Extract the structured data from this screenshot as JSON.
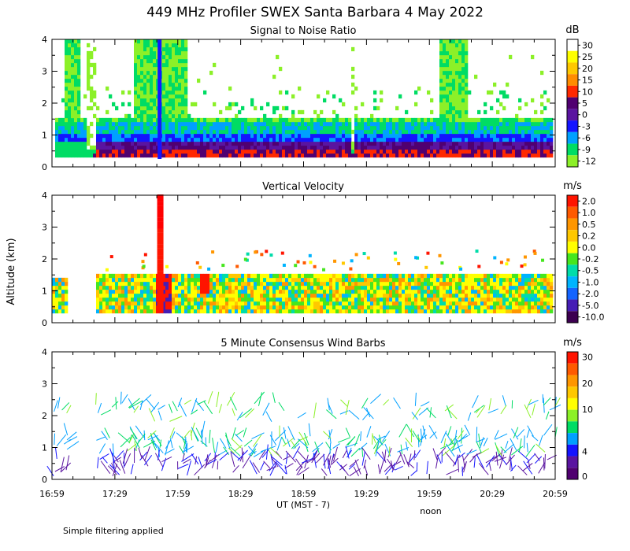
{
  "page": {
    "title": "449 MHz Profiler SWEX Santa Barbara  4 May 2022",
    "footer_note": "Simple filtering applied",
    "y_axis_label": "Altitude (km)",
    "x_axis_label": "UT  (MST - 7)",
    "noon_label": "noon"
  },
  "chart_data": [
    {
      "type": "heatmap",
      "title": "Signal to Noise Ratio",
      "unit": "dB",
      "ylim": [
        0,
        4
      ],
      "y_ticks": [
        "0",
        "1",
        "2",
        "3",
        "4"
      ],
      "x_ticks": [
        "16:59",
        "17:29",
        "17:59",
        "18:29",
        "18:59",
        "19:29",
        "19:59",
        "20:29",
        "20:59"
      ],
      "colorbar_labels": [
        "30",
        "25",
        "20",
        "15",
        "10",
        "5",
        "0",
        "-3",
        "-6",
        "-9",
        "-12"
      ],
      "colorbar_colors": [
        "#ffffff",
        "#ffff00",
        "#ffc800",
        "#ff8c00",
        "#ff2800",
        "#500070",
        "#5a14a0",
        "#1414ff",
        "#00a0ff",
        "#00dc64",
        "#8cf028"
      ]
    },
    {
      "type": "heatmap",
      "title": "Vertical Velocity",
      "unit": "m/s",
      "ylim": [
        0,
        4
      ],
      "y_ticks": [
        "0",
        "1",
        "2",
        "3",
        "4"
      ],
      "x_ticks": [
        "16:59",
        "17:29",
        "17:59",
        "18:29",
        "18:59",
        "19:29",
        "19:59",
        "20:29",
        "20:59"
      ],
      "colorbar_labels": [
        "2.0",
        "1.0",
        "0.5",
        "0.2",
        "0.0",
        "-0.2",
        "-0.5",
        "-1.0",
        "-2.0",
        "-5.0",
        "-10.0"
      ],
      "colorbar_colors": [
        "#ff1400",
        "#ff5a00",
        "#ff9600",
        "#ffc800",
        "#ffff00",
        "#46e61e",
        "#00dcaa",
        "#00b4ff",
        "#1464ff",
        "#461eb4",
        "#3c0050"
      ]
    },
    {
      "type": "scatter",
      "subtype": "wind_barbs",
      "title": "5 Minute Consensus Wind Barbs",
      "unit": "m/s",
      "ylim": [
        0,
        4
      ],
      "y_ticks": [
        "0",
        "1",
        "2",
        "3",
        "4"
      ],
      "x_ticks": [
        "16:59",
        "17:29",
        "17:59",
        "18:29",
        "18:59",
        "19:29",
        "19:59",
        "20:29",
        "20:59"
      ],
      "colorbar_labels": [
        "30",
        "20",
        "10",
        "4",
        "0"
      ],
      "colorbar_colors": [
        "#ff1400",
        "#ff5a00",
        "#ff9600",
        "#ffc800",
        "#ffff00",
        "#8cf028",
        "#00dc64",
        "#00a0ff",
        "#1414ff",
        "#5a14a0",
        "#500070"
      ]
    }
  ]
}
